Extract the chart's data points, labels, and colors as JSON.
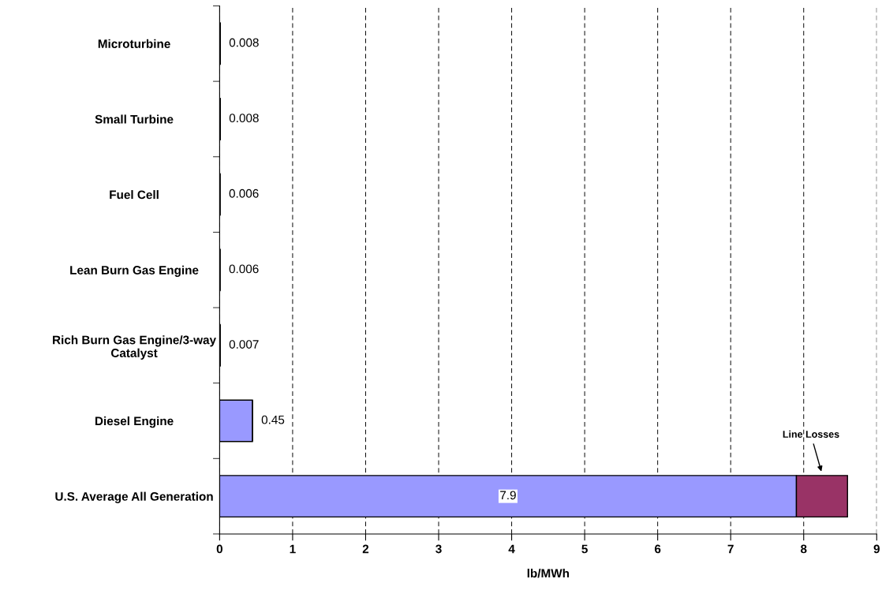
{
  "chart_data": {
    "type": "bar",
    "orientation": "horizontal",
    "stacked": true,
    "xlabel": "lb/MWh",
    "categories": [
      "Microturbine",
      "Small Turbine",
      "Fuel Cell",
      "Lean Burn Gas Engine",
      "Rich Burn Gas Engine/3-way Catalyst",
      "Diesel Engine",
      "U.S. Average All Generation"
    ],
    "series": [
      {
        "color": "#9999ff",
        "values": [
          0.008,
          0.008,
          0.006,
          0.006,
          0.007,
          0.45,
          7.9
        ],
        "value_labels": [
          "0.008",
          "0.008",
          "0.006",
          "0.006",
          "0.007",
          "0.45",
          "7.9"
        ]
      },
      {
        "color": "#993366",
        "values": [
          null,
          null,
          null,
          null,
          null,
          null,
          0.7
        ]
      }
    ],
    "xlim": [
      0,
      9
    ],
    "xticks": [
      0,
      1,
      2,
      3,
      4,
      5,
      6,
      7,
      8,
      9
    ],
    "grid": "x",
    "line_style": "dashed",
    "annotations": [
      "Line Losses"
    ]
  }
}
